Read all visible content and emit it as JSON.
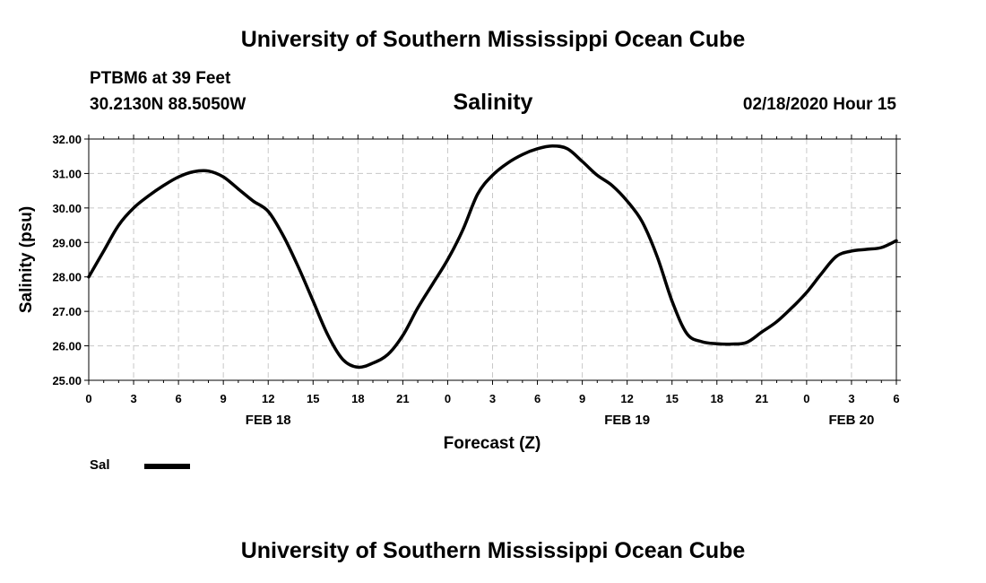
{
  "header": {
    "title": "University of Southern Mississippi Ocean Cube",
    "station": "PTBM6 at 39 Feet",
    "coordinates": "30.2130N 88.5050W",
    "subtitle": "Salinity",
    "datestamp": "02/18/2020 Hour 15"
  },
  "footer": {
    "title": "University of Southern Mississippi Ocean Cube"
  },
  "legend": {
    "label": "Sal",
    "color": "#000000"
  },
  "chart_data": {
    "type": "line",
    "title": "Salinity",
    "xlabel": "Forecast (Z)",
    "ylabel": "Salinity (psu)",
    "ylim": [
      25,
      32
    ],
    "xlim": [
      0,
      54
    ],
    "grid": true,
    "legend_position": "bottom-left",
    "y_ticks": [
      "25.00",
      "26.00",
      "27.00",
      "28.00",
      "29.00",
      "30.00",
      "31.00",
      "32.00"
    ],
    "x_tick_labels": [
      "0",
      "3",
      "6",
      "9",
      "12",
      "15",
      "18",
      "21",
      "0",
      "3",
      "6",
      "9",
      "12",
      "15",
      "18",
      "21",
      "0",
      "3",
      "6"
    ],
    "date_labels": [
      {
        "label": "FEB 18",
        "hour": 12
      },
      {
        "label": "FEB 19",
        "hour": 36
      },
      {
        "label": "FEB 20",
        "hour": 51
      }
    ],
    "series": [
      {
        "name": "Sal",
        "color": "#000000",
        "x": [
          0,
          1,
          2,
          3,
          4,
          5,
          6,
          7,
          8,
          9,
          10,
          11,
          12,
          13,
          14,
          15,
          16,
          17,
          18,
          19,
          20,
          21,
          22,
          23,
          24,
          25,
          26,
          27,
          28,
          29,
          30,
          31,
          32,
          33,
          34,
          35,
          36,
          37,
          38,
          39,
          40,
          41,
          42,
          43,
          44,
          45,
          46,
          47,
          48,
          49,
          50,
          51,
          52,
          53,
          54
        ],
        "values": [
          28.0,
          28.75,
          29.5,
          30.0,
          30.35,
          30.65,
          30.9,
          31.05,
          31.07,
          30.9,
          30.55,
          30.2,
          29.9,
          29.2,
          28.3,
          27.3,
          26.3,
          25.6,
          25.38,
          25.5,
          25.75,
          26.3,
          27.1,
          27.8,
          28.5,
          29.35,
          30.4,
          30.95,
          31.3,
          31.55,
          31.72,
          31.8,
          31.72,
          31.35,
          30.95,
          30.65,
          30.2,
          29.6,
          28.6,
          27.3,
          26.35,
          26.12,
          26.06,
          26.05,
          26.1,
          26.4,
          26.7,
          27.1,
          27.55,
          28.1,
          28.6,
          28.75,
          28.8,
          28.85,
          29.05
        ]
      }
    ]
  }
}
